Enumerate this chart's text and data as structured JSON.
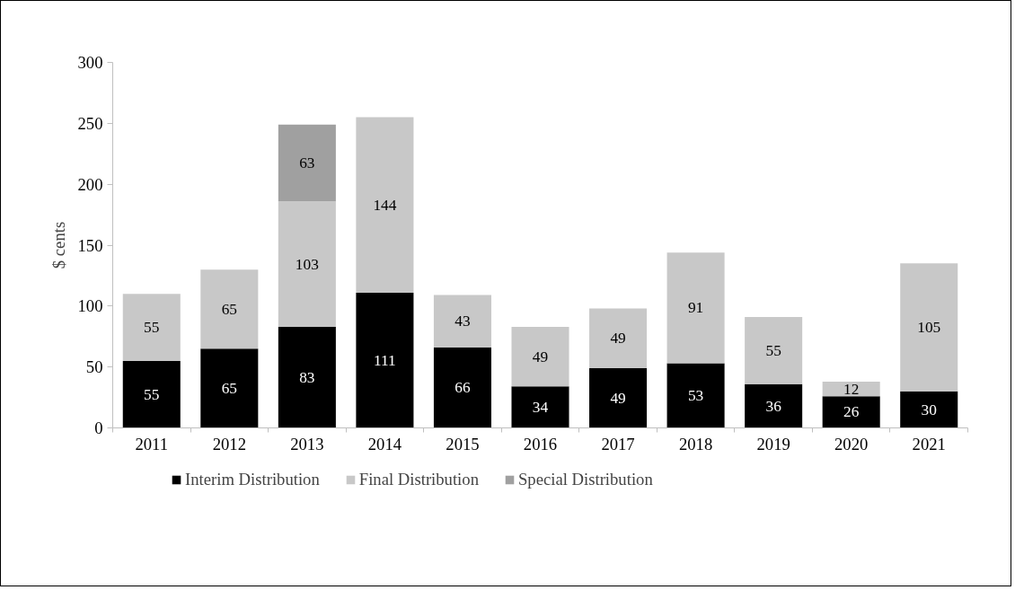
{
  "chart_data": {
    "type": "bar",
    "stacked": true,
    "ylabel": "$ cents",
    "categories": [
      "2011",
      "2012",
      "2013",
      "2014",
      "2015",
      "2016",
      "2017",
      "2018",
      "2019",
      "2020",
      "2021"
    ],
    "series": [
      {
        "name": "Interim Distribution",
        "color": "#000000",
        "values": [
          55,
          65,
          83,
          111,
          66,
          34,
          49,
          53,
          36,
          26,
          30
        ]
      },
      {
        "name": "Final Distribution",
        "color": "#c8c8c8",
        "values": [
          55,
          65,
          103,
          144,
          43,
          49,
          49,
          91,
          55,
          12,
          105
        ]
      },
      {
        "name": "Special Distribution",
        "color": "#a0a0a0",
        "values": [
          null,
          null,
          63,
          null,
          null,
          null,
          null,
          null,
          null,
          null,
          null
        ]
      }
    ],
    "ylim": [
      0,
      300
    ],
    "yticks": [
      0,
      50,
      100,
      150,
      200,
      250,
      300
    ],
    "grid": false,
    "legend": "bottom",
    "data_labels": true
  }
}
